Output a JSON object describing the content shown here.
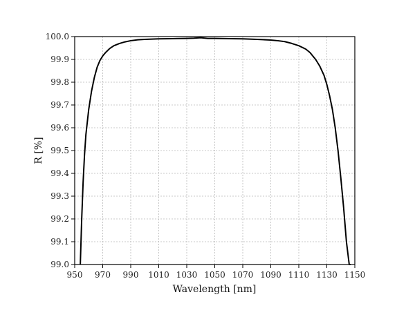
{
  "chart_data": {
    "type": "line",
    "xlabel": "Wavelength [nm]",
    "ylabel": "R [%]",
    "xlim": [
      950,
      1150
    ],
    "ylim": [
      99.0,
      100.0
    ],
    "x_ticks": [
      950,
      970,
      990,
      1010,
      1030,
      1050,
      1070,
      1090,
      1110,
      1130,
      1150
    ],
    "y_ticks": [
      "99.0",
      "99.1",
      "99.2",
      "99.3",
      "99.4",
      "99.5",
      "99.6",
      "99.7",
      "99.8",
      "99.9",
      "100.0"
    ],
    "grid": true,
    "series": [
      {
        "color": "#000000",
        "x": [
          954,
          955,
          956,
          957,
          958,
          960,
          962,
          964,
          966,
          968,
          970,
          972,
          975,
          978,
          982,
          986,
          990,
          995,
          1000,
          1010,
          1020,
          1030,
          1035,
          1040,
          1045,
          1050,
          1060,
          1070,
          1080,
          1090,
          1095,
          1100,
          1105,
          1110,
          1115,
          1118,
          1122,
          1125,
          1128,
          1130,
          1132,
          1134,
          1136,
          1138,
          1140,
          1142,
          1144,
          1146,
          1147
        ],
        "y": [
          99.0,
          99.2,
          99.36,
          99.48,
          99.57,
          99.68,
          99.76,
          99.82,
          99.865,
          99.895,
          99.915,
          99.93,
          99.948,
          99.96,
          99.97,
          99.977,
          99.982,
          99.986,
          99.988,
          99.99,
          99.991,
          99.992,
          99.993,
          99.995,
          99.992,
          99.992,
          99.991,
          99.99,
          99.988,
          99.985,
          99.982,
          99.978,
          99.97,
          99.96,
          99.945,
          99.93,
          99.9,
          99.87,
          99.83,
          99.79,
          99.74,
          99.68,
          99.6,
          99.5,
          99.38,
          99.25,
          99.1,
          99.0,
          99.0
        ]
      }
    ]
  }
}
